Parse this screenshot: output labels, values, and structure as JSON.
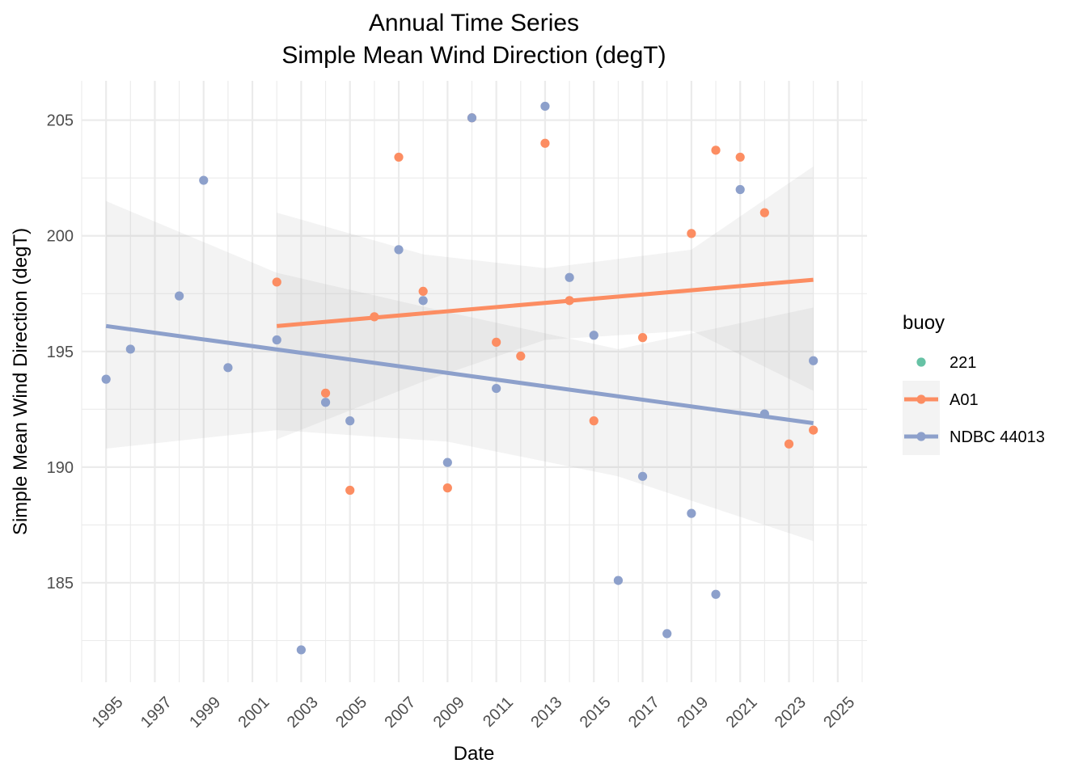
{
  "chart_data": {
    "type": "scatter",
    "title": "Annual Time Series",
    "subtitle": "Simple Mean Wind Direction (degT)",
    "xlabel": "Date",
    "ylabel": "Simple Mean Wind Direction (degT)",
    "xlim": [
      1994,
      2026.2
    ],
    "ylim": [
      180.7,
      206.7
    ],
    "x_ticks": [
      "1995",
      "1997",
      "1999",
      "2001",
      "2003",
      "2005",
      "2007",
      "2009",
      "2011",
      "2013",
      "2015",
      "2017",
      "2019",
      "2021",
      "2023",
      "2025"
    ],
    "y_ticks": [
      185,
      190,
      195,
      200,
      205
    ],
    "grid": true,
    "legend": {
      "title": "buoy",
      "position": "right"
    },
    "series": [
      {
        "name": "221",
        "color": "#66c2a5",
        "points": []
      },
      {
        "name": "A01",
        "color": "#fc8d62",
        "points": [
          [
            2002,
            198.0
          ],
          [
            2004,
            193.2
          ],
          [
            2005,
            189.0
          ],
          [
            2006,
            196.5
          ],
          [
            2007,
            203.4
          ],
          [
            2008,
            197.6
          ],
          [
            2009,
            189.1
          ],
          [
            2010,
            205.1
          ],
          [
            2011,
            195.4
          ],
          [
            2012,
            194.8
          ],
          [
            2013,
            204.0
          ],
          [
            2014,
            197.2
          ],
          [
            2015,
            192.0
          ],
          [
            2017,
            195.6
          ],
          [
            2019,
            200.1
          ],
          [
            2020,
            203.7
          ],
          [
            2021,
            203.4
          ],
          [
            2022,
            201.0
          ],
          [
            2023,
            191.0
          ],
          [
            2024,
            191.6
          ]
        ],
        "trend": {
          "x": [
            2002,
            2024
          ],
          "y": [
            196.1,
            198.1
          ]
        },
        "band": {
          "x": [
            2002,
            2008,
            2013,
            2019,
            2024
          ],
          "lower": [
            191.2,
            193.7,
            195.5,
            195.9,
            193.3
          ],
          "upper": [
            201.0,
            199.2,
            198.6,
            199.4,
            203.0
          ]
        }
      },
      {
        "name": "NDBC 44013",
        "color": "#8da0cb",
        "points": [
          [
            1995,
            193.8
          ],
          [
            1996,
            195.1
          ],
          [
            1998,
            197.4
          ],
          [
            1999,
            202.4
          ],
          [
            2000,
            194.3
          ],
          [
            2002,
            195.5
          ],
          [
            2003,
            182.1
          ],
          [
            2004,
            192.8
          ],
          [
            2005,
            192.0
          ],
          [
            2007,
            199.4
          ],
          [
            2008,
            197.2
          ],
          [
            2009,
            190.2
          ],
          [
            2010,
            205.1
          ],
          [
            2011,
            193.4
          ],
          [
            2013,
            205.6
          ],
          [
            2014,
            198.2
          ],
          [
            2015,
            195.7
          ],
          [
            2016,
            185.1
          ],
          [
            2017,
            189.6
          ],
          [
            2018,
            182.8
          ],
          [
            2019,
            188.0
          ],
          [
            2020,
            184.5
          ],
          [
            2021,
            202.0
          ],
          [
            2022,
            192.3
          ],
          [
            2024,
            194.6
          ]
        ],
        "trend": {
          "x": [
            1995,
            2024
          ],
          "y": [
            196.1,
            191.9
          ]
        },
        "band": {
          "x": [
            1995,
            2002,
            2009,
            2016,
            2024
          ],
          "lower": [
            190.8,
            191.6,
            191.1,
            189.6,
            186.8
          ],
          "upper": [
            201.5,
            198.4,
            196.7,
            195.1,
            196.9
          ]
        }
      }
    ]
  }
}
